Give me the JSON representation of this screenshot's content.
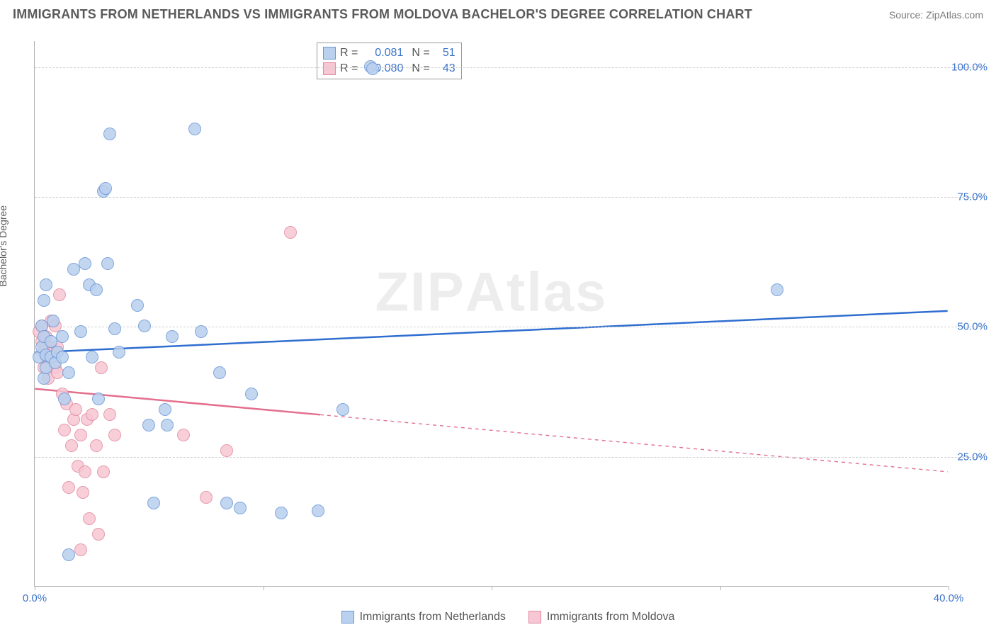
{
  "header": {
    "title": "IMMIGRANTS FROM NETHERLANDS VS IMMIGRANTS FROM MOLDOVA BACHELOR'S DEGREE CORRELATION CHART",
    "source": "Source: ZipAtlas.com"
  },
  "watermark": {
    "prefix": "ZIP",
    "suffix": "Atlas"
  },
  "y_axis": {
    "label": "Bachelor's Degree"
  },
  "chart": {
    "type": "scatter-with-regression",
    "background_color": "#ffffff",
    "grid_color": "#d0d0d0",
    "axis_color": "#b0b0b0",
    "xlim": [
      0,
      40
    ],
    "ylim": [
      0,
      105
    ],
    "y_ticks": [
      {
        "v": 25,
        "label": "25.0%"
      },
      {
        "v": 50,
        "label": "50.0%"
      },
      {
        "v": 75,
        "label": "75.0%"
      },
      {
        "v": 100,
        "label": "100.0%"
      }
    ],
    "x_ticks": [
      0,
      10,
      20,
      30,
      40
    ],
    "x_tick_labels": {
      "0": "0.0%",
      "40": "40.0%"
    },
    "marker_radius": 9,
    "tick_label_color": "#3b73c9"
  },
  "series": {
    "netherlands": {
      "label": "Immigrants from Netherlands",
      "fill": "#b9d0ee",
      "stroke": "#6a97d7",
      "line_color": "#2f6ecf",
      "R": "0.081",
      "N": "51",
      "regression": {
        "x1": 0,
        "y1": 45,
        "x2": 40,
        "y2": 53,
        "solid_until_x": 40
      },
      "points": [
        [
          0.2,
          44
        ],
        [
          0.3,
          50
        ],
        [
          0.3,
          46
        ],
        [
          0.4,
          55
        ],
        [
          0.4,
          40
        ],
        [
          0.4,
          48
        ],
        [
          0.5,
          44.5
        ],
        [
          0.5,
          42
        ],
        [
          0.5,
          58
        ],
        [
          0.7,
          44
        ],
        [
          0.7,
          47
        ],
        [
          0.8,
          51
        ],
        [
          0.9,
          43
        ],
        [
          1.0,
          45
        ],
        [
          1.2,
          44
        ],
        [
          1.2,
          48
        ],
        [
          1.3,
          36
        ],
        [
          1.5,
          6
        ],
        [
          1.5,
          41
        ],
        [
          1.7,
          61
        ],
        [
          2.0,
          49
        ],
        [
          2.2,
          62
        ],
        [
          2.4,
          58
        ],
        [
          2.5,
          44
        ],
        [
          2.7,
          57
        ],
        [
          2.8,
          36
        ],
        [
          3.0,
          76
        ],
        [
          3.1,
          76.5
        ],
        [
          3.2,
          62
        ],
        [
          3.3,
          87
        ],
        [
          3.5,
          49.5
        ],
        [
          3.7,
          45
        ],
        [
          4.5,
          54
        ],
        [
          4.8,
          50
        ],
        [
          5.0,
          31
        ],
        [
          5.2,
          16
        ],
        [
          5.7,
          34
        ],
        [
          5.8,
          31
        ],
        [
          6.0,
          48
        ],
        [
          7.0,
          88
        ],
        [
          7.3,
          49
        ],
        [
          8.1,
          41
        ],
        [
          8.4,
          16
        ],
        [
          9.0,
          15
        ],
        [
          9.5,
          37
        ],
        [
          10.8,
          14
        ],
        [
          12.4,
          14.5
        ],
        [
          13.5,
          34
        ],
        [
          14.7,
          100
        ],
        [
          14.8,
          99.5
        ],
        [
          32.5,
          57
        ]
      ]
    },
    "moldova": {
      "label": "Immigrants from Moldova",
      "fill": "#f7c7d3",
      "stroke": "#e28aa1",
      "line_color": "#e36f8d",
      "R": "-0.080",
      "N": "43",
      "regression": {
        "x1": 0,
        "y1": 38,
        "x2": 40,
        "y2": 22,
        "solid_until_x": 12.5
      },
      "points": [
        [
          0.2,
          49
        ],
        [
          0.3,
          47
        ],
        [
          0.3,
          50
        ],
        [
          0.4,
          45
        ],
        [
          0.4,
          42
        ],
        [
          0.5,
          48
        ],
        [
          0.5,
          46
        ],
        [
          0.5,
          44
        ],
        [
          0.6,
          44
        ],
        [
          0.6,
          40
        ],
        [
          0.7,
          51
        ],
        [
          0.7,
          46
        ],
        [
          0.8,
          45
        ],
        [
          0.9,
          50
        ],
        [
          0.9,
          42
        ],
        [
          1.0,
          46
        ],
        [
          1.0,
          41
        ],
        [
          1.1,
          56
        ],
        [
          1.2,
          37
        ],
        [
          1.3,
          30
        ],
        [
          1.4,
          35
        ],
        [
          1.5,
          19
        ],
        [
          1.6,
          27
        ],
        [
          1.7,
          32
        ],
        [
          1.8,
          34
        ],
        [
          1.9,
          23
        ],
        [
          2.0,
          7
        ],
        [
          2.0,
          29
        ],
        [
          2.1,
          18
        ],
        [
          2.2,
          22
        ],
        [
          2.3,
          32
        ],
        [
          2.4,
          13
        ],
        [
          2.5,
          33
        ],
        [
          2.7,
          27
        ],
        [
          2.8,
          10
        ],
        [
          2.9,
          42
        ],
        [
          3.0,
          22
        ],
        [
          3.3,
          33
        ],
        [
          3.5,
          29
        ],
        [
          6.5,
          29
        ],
        [
          7.5,
          17
        ],
        [
          8.4,
          26
        ],
        [
          11.2,
          68
        ]
      ]
    }
  },
  "legend_top": {
    "R_label": "R =",
    "N_label": "N ="
  }
}
